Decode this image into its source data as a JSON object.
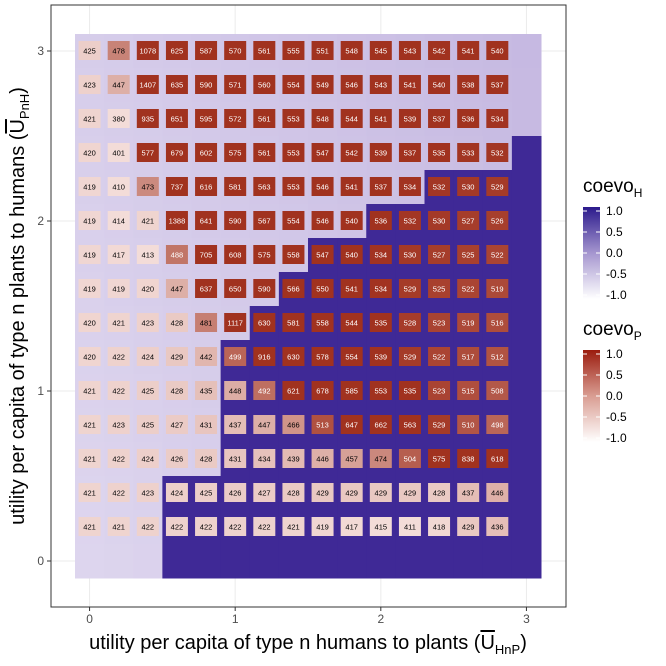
{
  "chart_data": {
    "type": "heatmap",
    "x": [
      0,
      0.2,
      0.4,
      0.6,
      0.8,
      1.0,
      1.2,
      1.4,
      1.6,
      1.8,
      2.0,
      2.2,
      2.4,
      2.6,
      2.8,
      3.0
    ],
    "y": [
      3.0,
      2.8,
      2.6,
      2.4,
      2.2,
      2.0,
      1.8,
      1.6,
      1.4,
      1.2,
      1.0,
      0.8,
      0.6,
      0.4,
      0.2,
      0.0
    ],
    "xlim": [
      -0.1,
      3.1
    ],
    "ylim": [
      -0.1,
      3.1
    ],
    "x_ticks": [
      0,
      1,
      2,
      3
    ],
    "y_ticks": [
      0,
      1,
      2,
      3
    ],
    "x_tick_labels": [
      "0",
      "1",
      "2",
      "3"
    ],
    "y_tick_labels": [
      "0",
      "1",
      "2",
      "3"
    ],
    "xlabel": {
      "main": "utility per capita of type n humans to plants (",
      "symbol": "U",
      "sub": "HnP",
      "close": ")"
    },
    "ylabel": {
      "main": "utility per capita of type n plants to humans (",
      "symbol": "U",
      "sub": "PnH",
      "close": ")"
    },
    "grid": true,
    "legend_position": "right",
    "tile_threshold": [
      3,
      3,
      3,
      5,
      5,
      5,
      5,
      6,
      7,
      8,
      10,
      12,
      15,
      99,
      99,
      99
    ],
    "values": [
      [
        425,
        478,
        1078,
        625,
        587,
        570,
        561,
        555,
        551,
        548,
        545,
        543,
        542,
        541,
        540,
        null
      ],
      [
        423,
        447,
        1407,
        635,
        590,
        571,
        560,
        554,
        549,
        546,
        543,
        541,
        540,
        538,
        537,
        null
      ],
      [
        421,
        380,
        935,
        651,
        595,
        572,
        561,
        553,
        548,
        544,
        541,
        539,
        537,
        536,
        534,
        null
      ],
      [
        420,
        401,
        577,
        679,
        602,
        575,
        561,
        553,
        547,
        542,
        539,
        537,
        535,
        533,
        532,
        null
      ],
      [
        419,
        410,
        473,
        737,
        616,
        581,
        563,
        553,
        546,
        541,
        537,
        534,
        532,
        530,
        529,
        null
      ],
      [
        419,
        414,
        421,
        1388,
        641,
        590,
        567,
        554,
        546,
        540,
        536,
        532,
        530,
        527,
        526,
        null
      ],
      [
        419,
        417,
        413,
        488,
        705,
        608,
        575,
        558,
        547,
        540,
        534,
        530,
        527,
        525,
        522,
        null
      ],
      [
        419,
        419,
        420,
        447,
        637,
        650,
        590,
        566,
        550,
        541,
        534,
        529,
        525,
        522,
        519,
        null
      ],
      [
        420,
        421,
        423,
        428,
        481,
        1117,
        630,
        581,
        558,
        544,
        535,
        528,
        523,
        519,
        516,
        null
      ],
      [
        420,
        422,
        424,
        429,
        442,
        499,
        916,
        630,
        578,
        554,
        539,
        529,
        522,
        517,
        512,
        null
      ],
      [
        421,
        422,
        425,
        428,
        435,
        448,
        492,
        621,
        678,
        585,
        553,
        535,
        523,
        515,
        508,
        null
      ],
      [
        421,
        423,
        425,
        427,
        431,
        437,
        447,
        466,
        513,
        647,
        662,
        563,
        529,
        510,
        498,
        null
      ],
      [
        421,
        422,
        424,
        426,
        428,
        431,
        434,
        439,
        446,
        457,
        474,
        504,
        575,
        838,
        618,
        null
      ],
      [
        421,
        422,
        423,
        424,
        425,
        426,
        427,
        428,
        429,
        429,
        429,
        429,
        428,
        437,
        446,
        null
      ],
      [
        421,
        421,
        422,
        422,
        422,
        422,
        422,
        421,
        419,
        417,
        415,
        411,
        418,
        429,
        436,
        null
      ],
      [
        null,
        null,
        null,
        null,
        null,
        null,
        null,
        null,
        null,
        null,
        null,
        null,
        null,
        null,
        null,
        null
      ]
    ],
    "legends": [
      {
        "title": "coevo",
        "sub": "H",
        "labels": [
          "1.0",
          "0.5",
          "0.0",
          "-0.5",
          "-1.0"
        ],
        "color_high": "#2b1a8c",
        "color_low": "#ffffff"
      },
      {
        "title": "coevo",
        "sub": "P",
        "labels": [
          "1.0",
          "0.5",
          "0.0",
          "-0.5",
          "-1.0"
        ],
        "color_high": "#9b1c0e",
        "color_low": "#ffffff"
      }
    ],
    "colors": {
      "background_tile_high": "#3f2996",
      "background_tile_low": "#ddd5ee",
      "cell_high": "#a1321f",
      "cell_low": "#f3dcd8",
      "panel_border": "#333333",
      "grid": "#ebebeb"
    }
  }
}
